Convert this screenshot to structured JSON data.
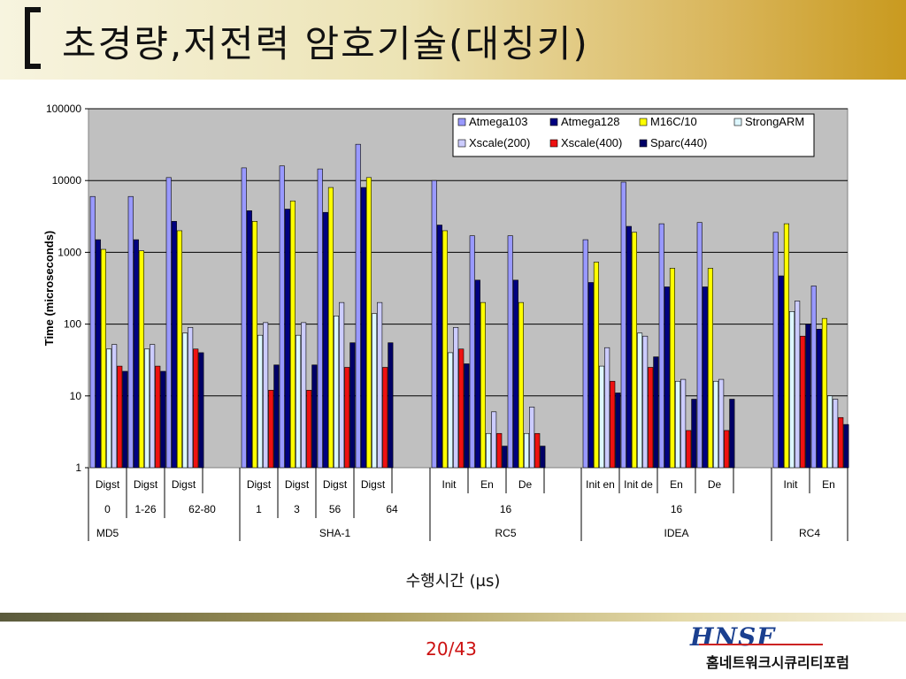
{
  "slide": {
    "title": "초경량,저전력 암호기술(대칭키)",
    "page_number": "20/43",
    "logo_text": "HNSF",
    "logo_subtext": "홈네트워크시큐리티포럼",
    "caption": "수행시간 (μs)"
  },
  "chart_data": {
    "type": "bar",
    "scale": "log",
    "ylim": [
      1,
      100000
    ],
    "ylabel": "Time (microseconds)",
    "y_ticks": [
      "1",
      "10",
      "100",
      "1000",
      "10000",
      "100000"
    ],
    "grid": true,
    "legend_position": "top-right",
    "series": [
      {
        "name": "Atmega103",
        "color": "#9999ff"
      },
      {
        "name": "Atmega128",
        "color": "#000080"
      },
      {
        "name": "M16C/10",
        "color": "#ffff00"
      },
      {
        "name": "StrongARM",
        "color": "#ddf7ff"
      },
      {
        "name": "Xscale(200)",
        "color": "#ccccff"
      },
      {
        "name": "Xscale(400)",
        "color": "#ee1111"
      },
      {
        "name": "Sparc(440)",
        "color": "#000066"
      }
    ],
    "groups": [
      {
        "op": "Digst",
        "param": "0",
        "algo": "MD5",
        "values": [
          6000,
          1500,
          1100,
          45,
          52,
          26,
          22
        ]
      },
      {
        "op": "Digst",
        "param": "1-26",
        "algo": "MD5",
        "values": [
          6000,
          1500,
          1050,
          45,
          52,
          26,
          22
        ]
      },
      {
        "op": "Digst",
        "param": "62-80",
        "algo": "MD5",
        "values": [
          11000,
          2700,
          2000,
          75,
          90,
          45,
          40
        ]
      },
      {
        "op": "Digst",
        "param": "1",
        "algo": "SHA-1",
        "values": [
          15000,
          3800,
          2700,
          70,
          105,
          12,
          27
        ]
      },
      {
        "op": "Digst",
        "param": "3",
        "algo": "SHA-1",
        "values": [
          16000,
          4000,
          5200,
          70,
          105,
          12,
          27
        ]
      },
      {
        "op": "Digst",
        "param": "56",
        "algo": "SHA-1",
        "values": [
          14500,
          3600,
          8000,
          130,
          200,
          25,
          55
        ]
      },
      {
        "op": "Digst",
        "param": "64",
        "algo": "SHA-1",
        "values": [
          32000,
          8000,
          11000,
          140,
          200,
          25,
          55
        ]
      },
      {
        "op": "Init",
        "param": "16",
        "algo": "RC5",
        "values": [
          10000,
          2400,
          2000,
          40,
          90,
          45,
          28
        ]
      },
      {
        "op": "En",
        "param": "16",
        "algo": "RC5",
        "values": [
          1700,
          410,
          200,
          3,
          6,
          3,
          2
        ]
      },
      {
        "op": "De",
        "param": "16",
        "algo": "RC5",
        "values": [
          1700,
          410,
          200,
          3,
          7,
          3,
          2
        ]
      },
      {
        "op": "Init en",
        "param": "16",
        "algo": "IDEA",
        "values": [
          1500,
          380,
          730,
          26,
          47,
          16,
          11
        ]
      },
      {
        "op": "Init de",
        "param": "16",
        "algo": "IDEA",
        "values": [
          9500,
          2300,
          1900,
          75,
          68,
          25,
          35
        ]
      },
      {
        "op": "En",
        "param": "16",
        "algo": "IDEA",
        "values": [
          2500,
          330,
          600,
          16,
          17,
          3.3,
          9
        ]
      },
      {
        "op": "De",
        "param": "16",
        "algo": "IDEA",
        "values": [
          2600,
          330,
          600,
          16,
          17,
          3.3,
          9
        ]
      },
      {
        "op": "Init",
        "param": "",
        "algo": "RC4",
        "values": [
          1900,
          470,
          2500,
          150,
          210,
          68,
          100
        ]
      },
      {
        "op": "En",
        "param": "",
        "algo": "RC4",
        "values": [
          340,
          85,
          120,
          10,
          9,
          5,
          4
        ]
      }
    ],
    "row_labels": {
      "ops": [
        "Digst",
        "Digst",
        "Digst",
        "Digst",
        "Digst",
        "Digst",
        "Digst",
        "Init",
        "En",
        "De",
        "Init en",
        "Init de",
        "En",
        "De",
        "Init",
        "En"
      ],
      "params": [
        "0",
        "1-26",
        "62-80",
        "1",
        "3",
        "56",
        "64",
        "16",
        "16"
      ],
      "algos": [
        "MD5",
        "SHA-1",
        "RC5",
        "IDEA",
        "RC4"
      ]
    }
  }
}
